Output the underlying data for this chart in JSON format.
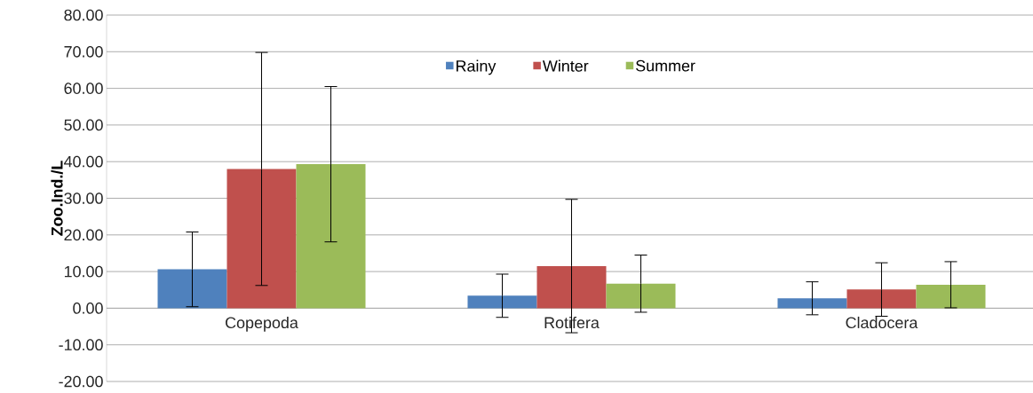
{
  "chart_data": {
    "type": "bar",
    "ylabel": "Zoo.Ind./L",
    "categories": [
      "Copepoda",
      "Rotifera",
      "Cladocera"
    ],
    "series": [
      {
        "name": "Rainy",
        "color": "#4f81bd",
        "values": [
          10.6,
          3.4,
          2.7
        ],
        "errors": [
          10.2,
          5.9,
          4.5
        ]
      },
      {
        "name": "Winter",
        "color": "#c0504d",
        "values": [
          38.0,
          11.5,
          5.1
        ],
        "errors": [
          31.8,
          18.2,
          7.3
        ]
      },
      {
        "name": "Summer",
        "color": "#9bbb59",
        "values": [
          39.3,
          6.7,
          6.4
        ],
        "errors": [
          21.2,
          7.8,
          6.3
        ]
      }
    ],
    "ylim": [
      -20,
      80
    ],
    "yticks": [
      {
        "value": -20,
        "label": "-20.00"
      },
      {
        "value": -10,
        "label": "-10.00"
      },
      {
        "value": 0,
        "label": "0.00"
      },
      {
        "value": 10,
        "label": "10.00"
      },
      {
        "value": 20,
        "label": "20.00"
      },
      {
        "value": 30,
        "label": "30.00"
      },
      {
        "value": 40,
        "label": "40.00"
      },
      {
        "value": 50,
        "label": "50.00"
      },
      {
        "value": 60,
        "label": "60.00"
      },
      {
        "value": 70,
        "label": "70.00"
      },
      {
        "value": 80,
        "label": "80.00"
      }
    ],
    "grid": "y",
    "legend": "top"
  }
}
